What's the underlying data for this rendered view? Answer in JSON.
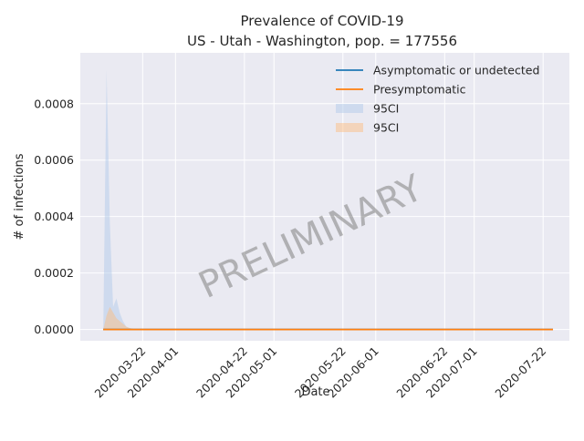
{
  "chart_data": {
    "type": "line",
    "title_line1": "Prevalence of COVID-19",
    "title_line2": "US - Utah - Washington, pop. = 177556",
    "xlabel": "Date",
    "ylabel": "# of infections",
    "xlim": [
      "2020-03-03",
      "2020-07-30"
    ],
    "ylim": [
      -4e-05,
      0.00098
    ],
    "x_ticks": [
      "2020-03-22",
      "2020-04-01",
      "2020-04-22",
      "2020-05-01",
      "2020-05-22",
      "2020-06-01",
      "2020-06-22",
      "2020-07-01",
      "2020-07-22"
    ],
    "y_ticks": [
      0.0,
      0.0002,
      0.0004,
      0.0006,
      0.0008
    ],
    "y_tick_labels": [
      "0.0000",
      "0.0002",
      "0.0004",
      "0.0006",
      "0.0008"
    ],
    "grid": true,
    "legend_position": "top-right",
    "watermark": "PRELIMINARY",
    "series": [
      {
        "name": "Asymptomatic or undetected",
        "color": "#1f77b4",
        "x": [
          "2020-03-10",
          "2020-07-25"
        ],
        "values": [
          0.0,
          0.0
        ]
      },
      {
        "name": "Presymptomatic",
        "color": "#ff7f0e",
        "x": [
          "2020-03-10",
          "2020-07-25"
        ],
        "values": [
          0.0,
          0.0
        ]
      }
    ],
    "bands": [
      {
        "name": "95CI",
        "color": "#aec7e8",
        "x": [
          "2020-03-10",
          "2020-03-11",
          "2020-03-12",
          "2020-03-13",
          "2020-03-14",
          "2020-03-15",
          "2020-03-16",
          "2020-03-17",
          "2020-03-18",
          "2020-03-20",
          "2020-07-25"
        ],
        "upper": [
          0.0,
          0.00092,
          0.00038,
          8e-05,
          0.00011,
          6e-05,
          3e-05,
          1e-05,
          5e-06,
          0.0,
          0.0
        ],
        "lower": [
          0.0,
          0.0,
          0.0,
          0.0,
          0.0,
          0.0,
          0.0,
          0.0,
          0.0,
          0.0,
          0.0
        ]
      },
      {
        "name": "95CI",
        "color": "#ffbb78",
        "x": [
          "2020-03-10",
          "2020-03-11",
          "2020-03-12",
          "2020-03-13",
          "2020-03-14",
          "2020-03-15",
          "2020-03-16",
          "2020-03-17",
          "2020-03-18",
          "2020-03-20",
          "2020-07-25"
        ],
        "upper": [
          0.0,
          5e-05,
          8e-05,
          6e-05,
          4e-05,
          3e-05,
          2e-05,
          1e-05,
          5e-06,
          0.0,
          0.0
        ],
        "lower": [
          0.0,
          0.0,
          0.0,
          0.0,
          0.0,
          0.0,
          0.0,
          0.0,
          0.0,
          0.0,
          0.0
        ]
      }
    ]
  }
}
